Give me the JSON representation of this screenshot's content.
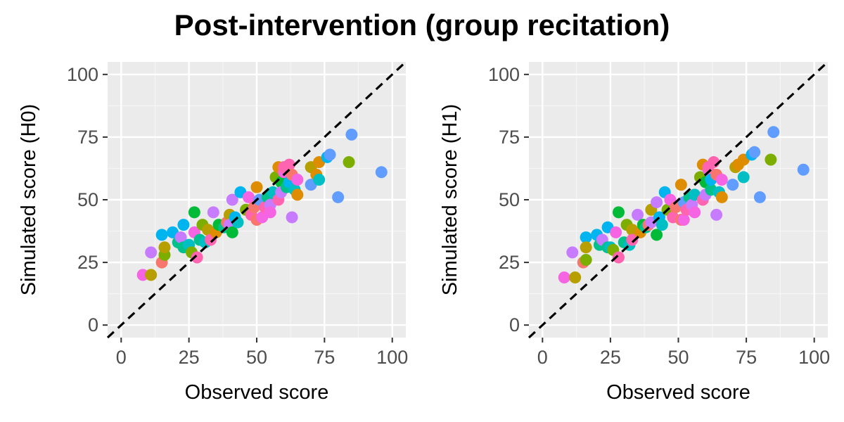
{
  "title": "Post-intervention (group recitation)",
  "colors": {
    "panel_background": "#ebebeb",
    "grid_major": "#ffffff",
    "grid_minor": "#f5f5f5",
    "reference_line": "#000000",
    "tick_text": "#4d4d4d",
    "palette": [
      "#F8766D",
      "#DE8C00",
      "#B79F00",
      "#7CAE00",
      "#00BA38",
      "#00C08B",
      "#00BFC4",
      "#00B4F0",
      "#619CFF",
      "#C77CFF",
      "#F564E3",
      "#FF64B0"
    ]
  },
  "chart_data": [
    {
      "type": "scatter",
      "panel": "left",
      "xlabel": "Observed score",
      "ylabel": "Simulated score (H0)",
      "xlim": [
        -5,
        105
      ],
      "ylim": [
        -5,
        105
      ],
      "xticks": [
        "0",
        "25",
        "50",
        "75",
        "100"
      ],
      "yticks": [
        "0",
        "25",
        "50",
        "75",
        "100"
      ],
      "reference_line": "y = x (dashed)",
      "grid": true,
      "legend": "none",
      "points": [
        {
          "x": 8,
          "y": 20,
          "c": 10
        },
        {
          "x": 11,
          "y": 20,
          "c": 2
        },
        {
          "x": 11,
          "y": 29,
          "c": 9
        },
        {
          "x": 15,
          "y": 25,
          "c": 0
        },
        {
          "x": 15,
          "y": 36,
          "c": 7
        },
        {
          "x": 16,
          "y": 28,
          "c": 3
        },
        {
          "x": 16,
          "y": 31,
          "c": 2
        },
        {
          "x": 19,
          "y": 37,
          "c": 7
        },
        {
          "x": 21,
          "y": 33,
          "c": 5
        },
        {
          "x": 22,
          "y": 35,
          "c": 9
        },
        {
          "x": 23,
          "y": 31,
          "c": 5
        },
        {
          "x": 23,
          "y": 40,
          "c": 7
        },
        {
          "x": 25,
          "y": 32,
          "c": 6
        },
        {
          "x": 26,
          "y": 29,
          "c": 3
        },
        {
          "x": 27,
          "y": 37,
          "c": 10
        },
        {
          "x": 27,
          "y": 45,
          "c": 4
        },
        {
          "x": 28,
          "y": 27,
          "c": 11
        },
        {
          "x": 29,
          "y": 34,
          "c": 5
        },
        {
          "x": 30,
          "y": 40,
          "c": 3
        },
        {
          "x": 31,
          "y": 33,
          "c": 6
        },
        {
          "x": 32,
          "y": 38,
          "c": 2
        },
        {
          "x": 33,
          "y": 34,
          "c": 11
        },
        {
          "x": 34,
          "y": 45,
          "c": 9
        },
        {
          "x": 35,
          "y": 37,
          "c": 1
        },
        {
          "x": 36,
          "y": 40,
          "c": 4
        },
        {
          "x": 38,
          "y": 39,
          "c": 5
        },
        {
          "x": 39,
          "y": 41,
          "c": 0
        },
        {
          "x": 40,
          "y": 44,
          "c": 2
        },
        {
          "x": 40,
          "y": 40,
          "c": 9
        },
        {
          "x": 41,
          "y": 37,
          "c": 4
        },
        {
          "x": 41,
          "y": 50,
          "c": 9
        },
        {
          "x": 42,
          "y": 43,
          "c": 7
        },
        {
          "x": 43,
          "y": 41,
          "c": 6
        },
        {
          "x": 44,
          "y": 53,
          "c": 7
        },
        {
          "x": 46,
          "y": 46,
          "c": 3
        },
        {
          "x": 47,
          "y": 51,
          "c": 10
        },
        {
          "x": 48,
          "y": 44,
          "c": 11
        },
        {
          "x": 49,
          "y": 47,
          "c": 0
        },
        {
          "x": 50,
          "y": 42,
          "c": 0
        },
        {
          "x": 50,
          "y": 55,
          "c": 1
        },
        {
          "x": 51,
          "y": 50,
          "c": 8
        },
        {
          "x": 52,
          "y": 43,
          "c": 10
        },
        {
          "x": 53,
          "y": 47,
          "c": 11
        },
        {
          "x": 54,
          "y": 51,
          "c": 5
        },
        {
          "x": 55,
          "y": 48,
          "c": 9
        },
        {
          "x": 55,
          "y": 45,
          "c": 10
        },
        {
          "x": 56,
          "y": 53,
          "c": 6
        },
        {
          "x": 57,
          "y": 59,
          "c": 3
        },
        {
          "x": 58,
          "y": 63,
          "c": 1
        },
        {
          "x": 58,
          "y": 50,
          "c": 11
        },
        {
          "x": 59,
          "y": 57,
          "c": 4
        },
        {
          "x": 59,
          "y": 53,
          "c": 9
        },
        {
          "x": 60,
          "y": 61,
          "c": 10
        },
        {
          "x": 60,
          "y": 63,
          "c": 11
        },
        {
          "x": 61,
          "y": 55,
          "c": 5
        },
        {
          "x": 62,
          "y": 57,
          "c": 7
        },
        {
          "x": 62,
          "y": 64,
          "c": 11
        },
        {
          "x": 63,
          "y": 43,
          "c": 9
        },
        {
          "x": 63,
          "y": 60,
          "c": 0
        },
        {
          "x": 64,
          "y": 54,
          "c": 6
        },
        {
          "x": 65,
          "y": 52,
          "c": 1
        },
        {
          "x": 65,
          "y": 58,
          "c": 10
        },
        {
          "x": 70,
          "y": 56,
          "c": 8
        },
        {
          "x": 70,
          "y": 63,
          "c": 2
        },
        {
          "x": 72,
          "y": 60,
          "c": 1
        },
        {
          "x": 73,
          "y": 58,
          "c": 6
        },
        {
          "x": 73,
          "y": 65,
          "c": 1
        },
        {
          "x": 76,
          "y": 67,
          "c": 7
        },
        {
          "x": 77,
          "y": 68,
          "c": 8
        },
        {
          "x": 80,
          "y": 51,
          "c": 8
        },
        {
          "x": 84,
          "y": 65,
          "c": 3
        },
        {
          "x": 85,
          "y": 76,
          "c": 8
        },
        {
          "x": 96,
          "y": 61,
          "c": 8
        }
      ]
    },
    {
      "type": "scatter",
      "panel": "right",
      "xlabel": "Observed score",
      "ylabel": "Simulated score (H1)",
      "xlim": [
        -5,
        105
      ],
      "ylim": [
        -5,
        105
      ],
      "xticks": [
        "0",
        "25",
        "50",
        "75",
        "100"
      ],
      "yticks": [
        "0",
        "25",
        "50",
        "75",
        "100"
      ],
      "reference_line": "y = x (dashed)",
      "grid": true,
      "legend": "none",
      "points": [
        {
          "x": 8,
          "y": 19,
          "c": 10
        },
        {
          "x": 12,
          "y": 19,
          "c": 2
        },
        {
          "x": 11,
          "y": 29,
          "c": 9
        },
        {
          "x": 15,
          "y": 25,
          "c": 0
        },
        {
          "x": 16,
          "y": 35,
          "c": 7
        },
        {
          "x": 16,
          "y": 26,
          "c": 3
        },
        {
          "x": 16,
          "y": 31,
          "c": 2
        },
        {
          "x": 20,
          "y": 36,
          "c": 7
        },
        {
          "x": 21,
          "y": 32,
          "c": 5
        },
        {
          "x": 22,
          "y": 34,
          "c": 9
        },
        {
          "x": 24,
          "y": 31,
          "c": 5
        },
        {
          "x": 24,
          "y": 39,
          "c": 7
        },
        {
          "x": 25,
          "y": 31,
          "c": 6
        },
        {
          "x": 26,
          "y": 30,
          "c": 3
        },
        {
          "x": 27,
          "y": 37,
          "c": 10
        },
        {
          "x": 28,
          "y": 45,
          "c": 4
        },
        {
          "x": 28,
          "y": 27,
          "c": 11
        },
        {
          "x": 30,
          "y": 33,
          "c": 5
        },
        {
          "x": 31,
          "y": 40,
          "c": 3
        },
        {
          "x": 32,
          "y": 32,
          "c": 6
        },
        {
          "x": 33,
          "y": 38,
          "c": 2
        },
        {
          "x": 33,
          "y": 34,
          "c": 11
        },
        {
          "x": 35,
          "y": 44,
          "c": 9
        },
        {
          "x": 36,
          "y": 37,
          "c": 1
        },
        {
          "x": 37,
          "y": 40,
          "c": 4
        },
        {
          "x": 38,
          "y": 39,
          "c": 5
        },
        {
          "x": 39,
          "y": 40,
          "c": 0
        },
        {
          "x": 40,
          "y": 46,
          "c": 2
        },
        {
          "x": 40,
          "y": 41,
          "c": 9
        },
        {
          "x": 42,
          "y": 36,
          "c": 4
        },
        {
          "x": 42,
          "y": 49,
          "c": 9
        },
        {
          "x": 43,
          "y": 43,
          "c": 7
        },
        {
          "x": 44,
          "y": 40,
          "c": 6
        },
        {
          "x": 45,
          "y": 53,
          "c": 7
        },
        {
          "x": 46,
          "y": 46,
          "c": 3
        },
        {
          "x": 47,
          "y": 50,
          "c": 10
        },
        {
          "x": 48,
          "y": 43,
          "c": 11
        },
        {
          "x": 49,
          "y": 47,
          "c": 0
        },
        {
          "x": 51,
          "y": 42,
          "c": 0
        },
        {
          "x": 51,
          "y": 56,
          "c": 1
        },
        {
          "x": 52,
          "y": 49,
          "c": 8
        },
        {
          "x": 52,
          "y": 42,
          "c": 10
        },
        {
          "x": 53,
          "y": 46,
          "c": 11
        },
        {
          "x": 54,
          "y": 51,
          "c": 5
        },
        {
          "x": 55,
          "y": 48,
          "c": 9
        },
        {
          "x": 56,
          "y": 45,
          "c": 10
        },
        {
          "x": 56,
          "y": 52,
          "c": 6
        },
        {
          "x": 58,
          "y": 59,
          "c": 3
        },
        {
          "x": 59,
          "y": 64,
          "c": 1
        },
        {
          "x": 59,
          "y": 50,
          "c": 11
        },
        {
          "x": 60,
          "y": 57,
          "c": 4
        },
        {
          "x": 60,
          "y": 52,
          "c": 9
        },
        {
          "x": 61,
          "y": 62,
          "c": 10
        },
        {
          "x": 61,
          "y": 63,
          "c": 11
        },
        {
          "x": 62,
          "y": 54,
          "c": 5
        },
        {
          "x": 62,
          "y": 58,
          "c": 7
        },
        {
          "x": 63,
          "y": 65,
          "c": 11
        },
        {
          "x": 64,
          "y": 44,
          "c": 9
        },
        {
          "x": 64,
          "y": 60,
          "c": 0
        },
        {
          "x": 65,
          "y": 53,
          "c": 6
        },
        {
          "x": 66,
          "y": 51,
          "c": 1
        },
        {
          "x": 66,
          "y": 58,
          "c": 10
        },
        {
          "x": 70,
          "y": 56,
          "c": 8
        },
        {
          "x": 71,
          "y": 63,
          "c": 2
        },
        {
          "x": 72,
          "y": 64,
          "c": 1
        },
        {
          "x": 74,
          "y": 59,
          "c": 6
        },
        {
          "x": 74,
          "y": 66,
          "c": 1
        },
        {
          "x": 77,
          "y": 68,
          "c": 7
        },
        {
          "x": 78,
          "y": 69,
          "c": 8
        },
        {
          "x": 80,
          "y": 51,
          "c": 8
        },
        {
          "x": 84,
          "y": 66,
          "c": 3
        },
        {
          "x": 85,
          "y": 77,
          "c": 8
        },
        {
          "x": 96,
          "y": 62,
          "c": 8
        }
      ]
    }
  ]
}
